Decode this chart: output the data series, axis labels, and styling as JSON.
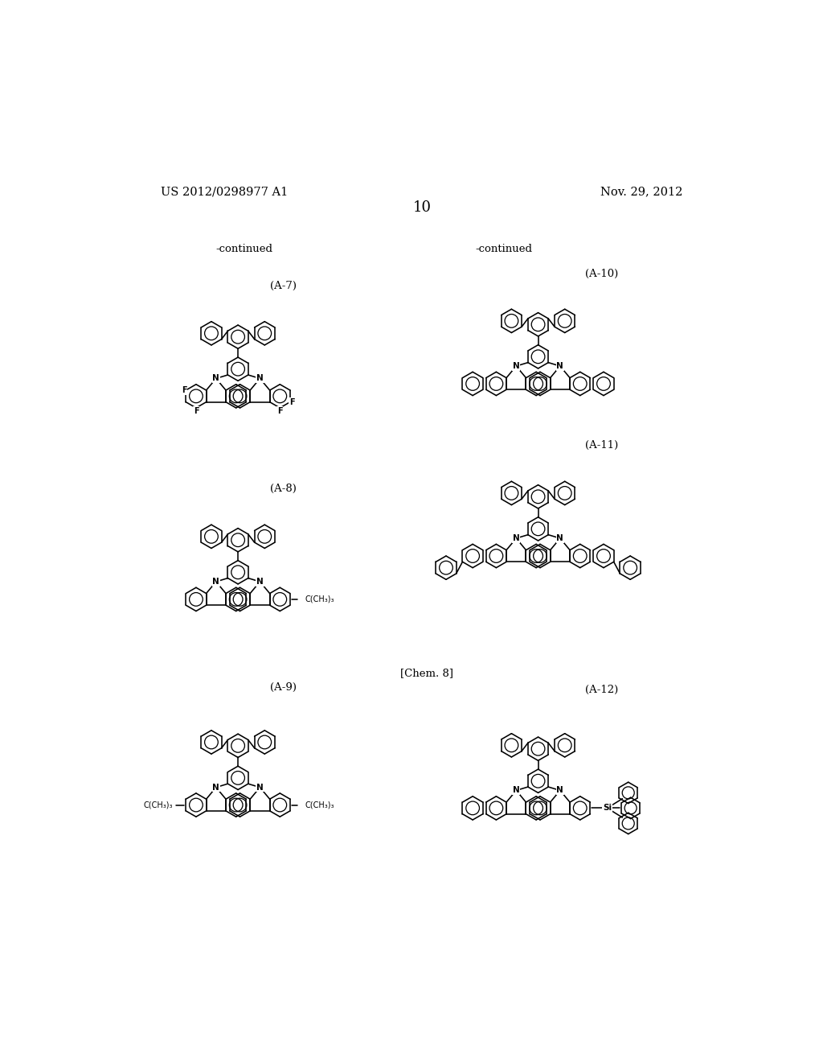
{
  "page_number": "10",
  "patent_number": "US 2012/0298977 A1",
  "date": "Nov. 29, 2012",
  "continued_left": "-continued",
  "continued_right": "-continued",
  "chem_label": "[Chem. 8]",
  "labels": [
    "(A-7)",
    "(A-8)",
    "(A-9)",
    "(A-10)",
    "(A-11)",
    "(A-12)"
  ],
  "bg": "#ffffff",
  "fg": "#000000"
}
